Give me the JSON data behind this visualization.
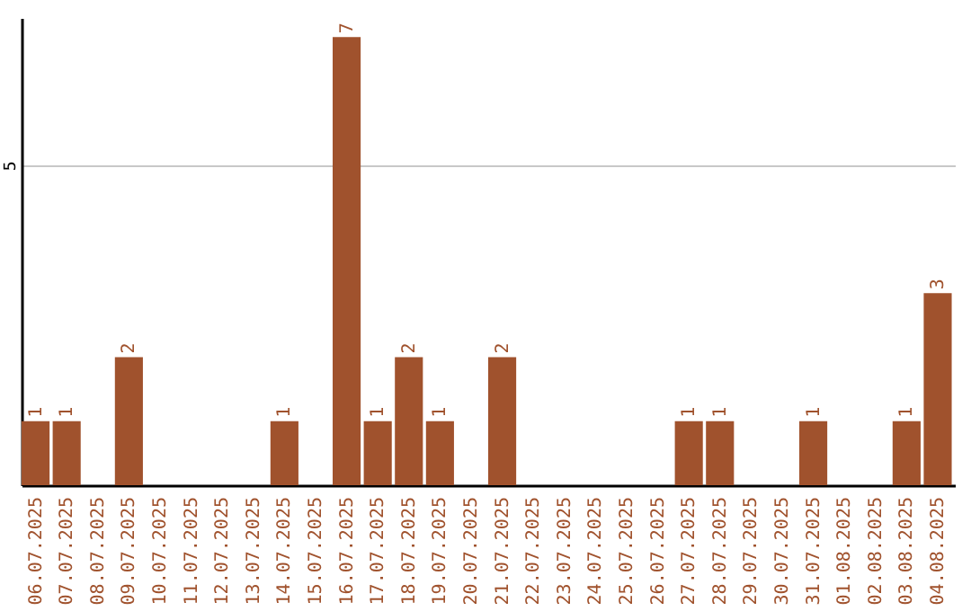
{
  "chart_data": {
    "type": "bar",
    "categories": [
      "06.07.2025",
      "07.07.2025",
      "08.07.2025",
      "09.07.2025",
      "10.07.2025",
      "11.07.2025",
      "12.07.2025",
      "13.07.2025",
      "14.07.2025",
      "15.07.2025",
      "16.07.2025",
      "17.07.2025",
      "18.07.2025",
      "19.07.2025",
      "20.07.2025",
      "21.07.2025",
      "22.07.2025",
      "23.07.2025",
      "24.07.2025",
      "25.07.2025",
      "26.07.2025",
      "27.07.2025",
      "28.07.2025",
      "29.07.2025",
      "30.07.2025",
      "31.07.2025",
      "01.08.2025",
      "02.08.2025",
      "03.08.2025",
      "04.08.2025"
    ],
    "values": [
      1,
      1,
      0,
      2,
      0,
      0,
      0,
      0,
      1,
      0,
      7,
      1,
      2,
      1,
      0,
      2,
      0,
      0,
      0,
      0,
      0,
      1,
      1,
      0,
      0,
      1,
      0,
      0,
      1,
      3
    ],
    "value_labels": [
      "1",
      "1",
      null,
      "2",
      null,
      null,
      null,
      null,
      "1",
      null,
      "7",
      "1",
      "2",
      "1",
      null,
      "2",
      null,
      null,
      null,
      null,
      null,
      "1",
      "1",
      null,
      null,
      "1",
      null,
      null,
      "1",
      "3"
    ],
    "color": "#a0522d",
    "ylim": [
      0,
      7.3
    ],
    "yticks": [
      5
    ],
    "grid": "y"
  }
}
